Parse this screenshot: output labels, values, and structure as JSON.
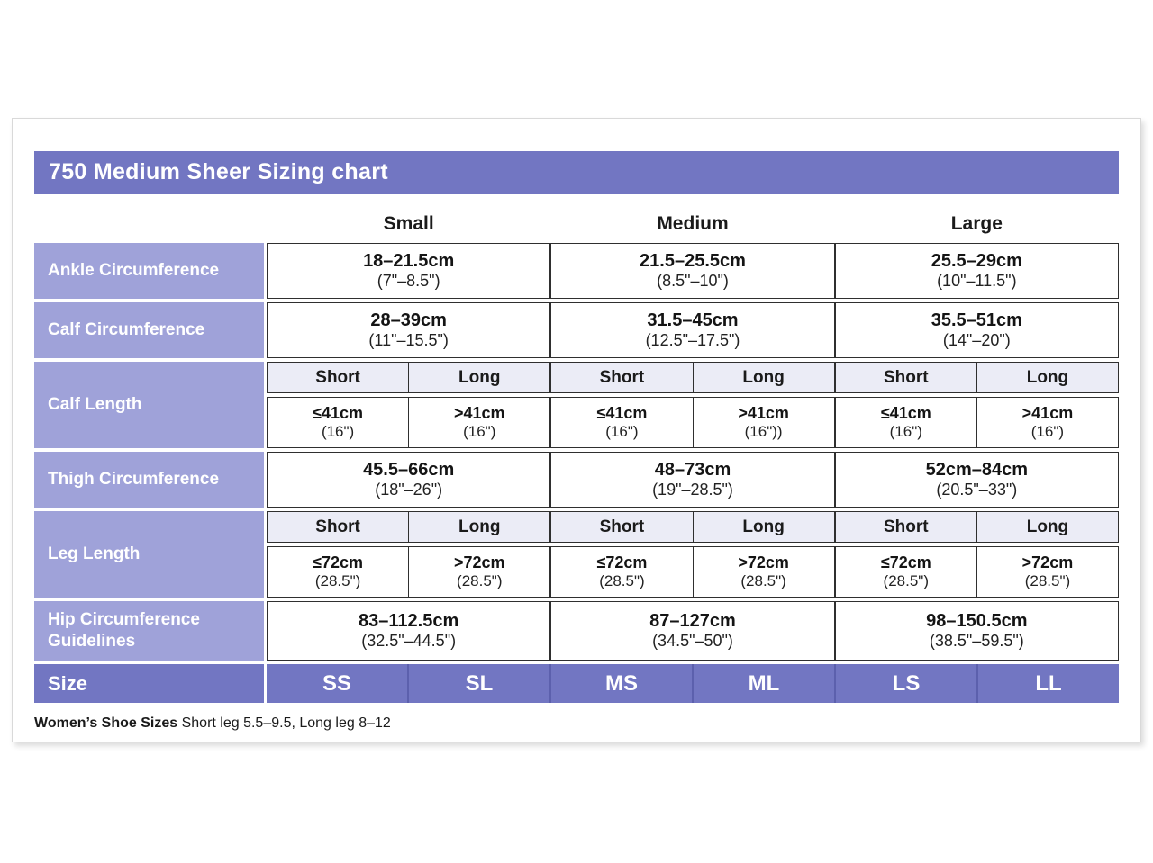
{
  "title": "750 Medium Sheer Sizing chart",
  "colors": {
    "header_purple": "#7276c2",
    "label_purple": "#9fa2d9",
    "subheader_lavender": "#ebecf6",
    "border_dark": "#2f2f2f"
  },
  "size_groups": [
    "Small",
    "Medium",
    "Large"
  ],
  "table": {
    "rows": {
      "ankle": {
        "label": "Ankle Circumference",
        "small": {
          "cm": "18–21.5cm",
          "inch": "(7\"–8.5\")"
        },
        "medium": {
          "cm": "21.5–25.5cm",
          "inch": "(8.5\"–10\")"
        },
        "large": {
          "cm": "25.5–29cm",
          "inch": "(10\"–11.5\")"
        }
      },
      "calf_circ": {
        "label": "Calf Circumference",
        "small": {
          "cm": "28–39cm",
          "inch": "(11\"–15.5\")"
        },
        "medium": {
          "cm": "31.5–45cm",
          "inch": "(12.5\"–17.5\")"
        },
        "large": {
          "cm": "35.5–51cm",
          "inch": "(14\"–20\")"
        }
      },
      "calf_length": {
        "label": "Calf Length",
        "subheaders": [
          "Short",
          "Long",
          "Short",
          "Long",
          "Short",
          "Long"
        ],
        "cells": [
          {
            "cm": "≤41cm",
            "inch": "(16\")"
          },
          {
            "cm": ">41cm",
            "inch": "(16\")"
          },
          {
            "cm": "≤41cm",
            "inch": "(16\")"
          },
          {
            "cm": ">41cm",
            "inch": "(16\"))"
          },
          {
            "cm": "≤41cm",
            "inch": "(16\")"
          },
          {
            "cm": ">41cm",
            "inch": "(16\")"
          }
        ]
      },
      "thigh": {
        "label": "Thigh Circumference",
        "small": {
          "cm": "45.5–66cm",
          "inch": "(18\"–26\")"
        },
        "medium": {
          "cm": "48–73cm",
          "inch": "(19\"–28.5\")"
        },
        "large": {
          "cm": "52cm–84cm",
          "inch": "(20.5\"–33\")"
        }
      },
      "leg_length": {
        "label": "Leg Length",
        "subheaders": [
          "Short",
          "Long",
          "Short",
          "Long",
          "Short",
          "Long"
        ],
        "cells": [
          {
            "cm": "≤72cm",
            "inch": "(28.5\")"
          },
          {
            "cm": ">72cm",
            "inch": "(28.5\")"
          },
          {
            "cm": "≤72cm",
            "inch": "(28.5\")"
          },
          {
            "cm": ">72cm",
            "inch": "(28.5\")"
          },
          {
            "cm": "≤72cm",
            "inch": "(28.5\")"
          },
          {
            "cm": ">72cm",
            "inch": "(28.5\")"
          }
        ]
      },
      "hip": {
        "label": "Hip Circumference Guidelines",
        "small": {
          "cm": "83–112.5cm",
          "inch": "(32.5\"–44.5\")"
        },
        "medium": {
          "cm": "87–127cm",
          "inch": "(34.5\"–50\")"
        },
        "large": {
          "cm": "98–150.5cm",
          "inch": "(38.5\"–59.5\")"
        }
      },
      "size": {
        "label": "Size",
        "cells": [
          "SS",
          "SL",
          "MS",
          "ML",
          "LS",
          "LL"
        ]
      }
    }
  },
  "footnote": {
    "bold": "Women’s Shoe Sizes",
    "text": " Short leg 5.5–9.5, Long leg 8–12"
  }
}
